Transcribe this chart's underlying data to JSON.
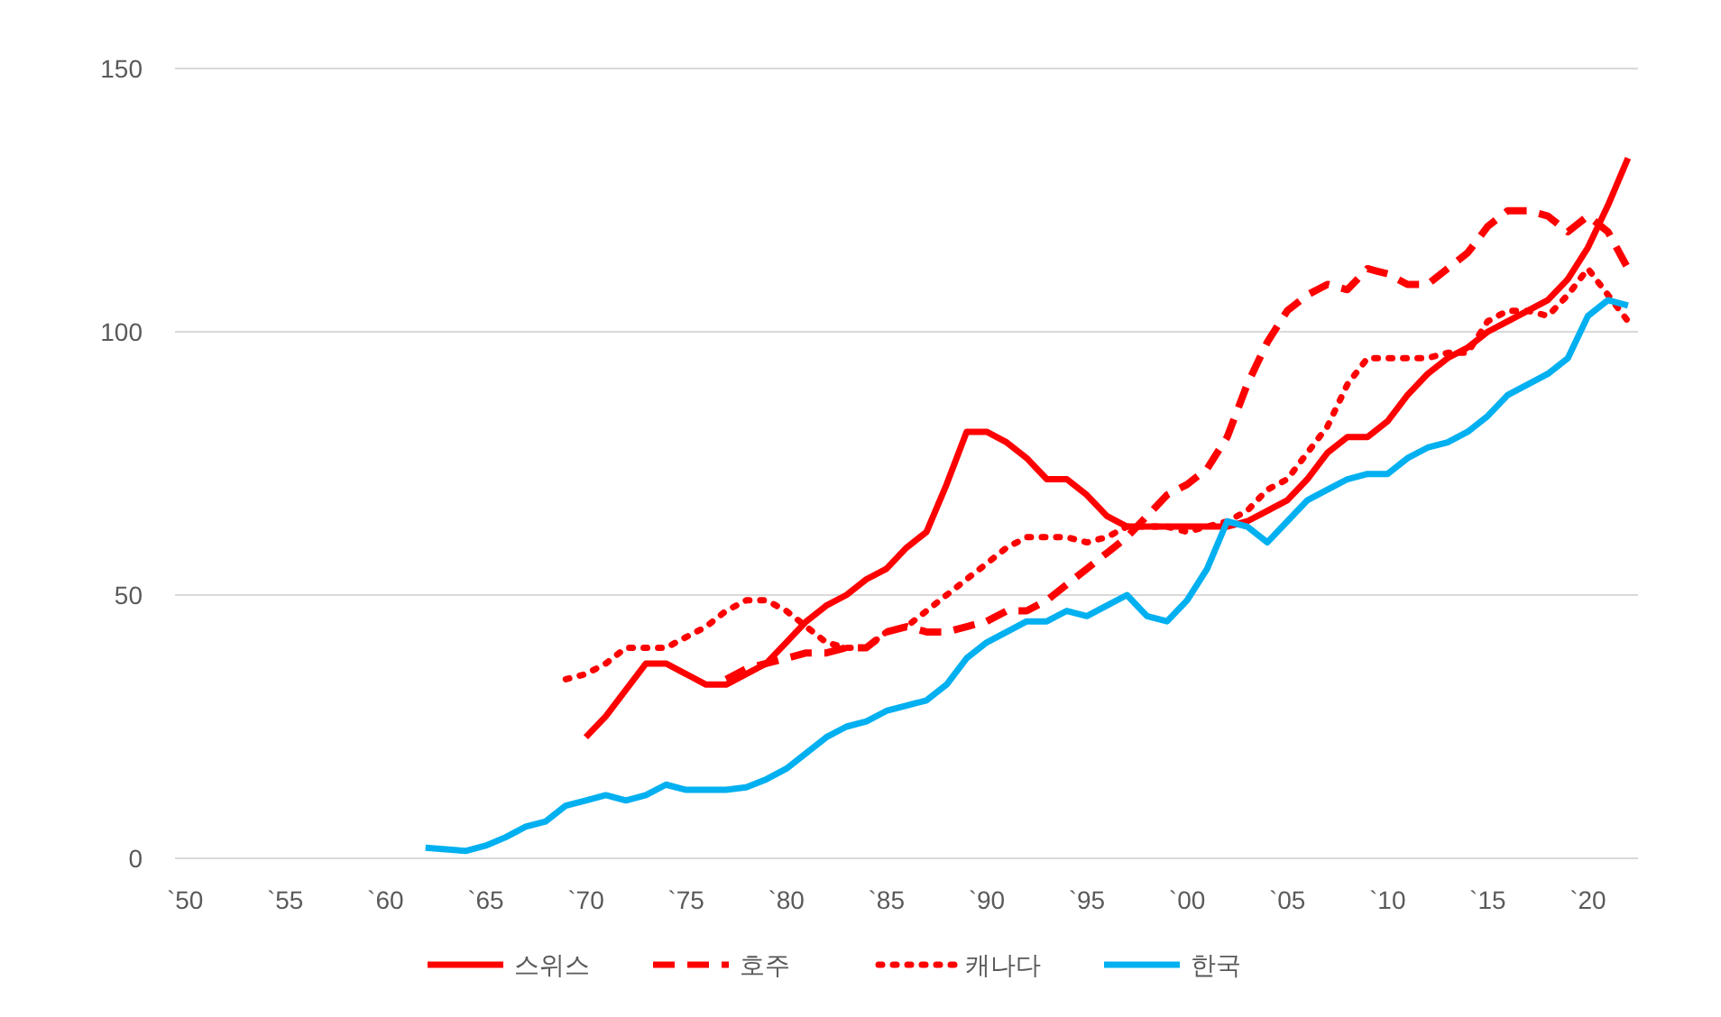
{
  "chart_data": {
    "type": "line",
    "ylim": [
      0,
      150
    ],
    "yticks": [
      0,
      50,
      100,
      150
    ],
    "categories": [
      "`50",
      null,
      null,
      null,
      null,
      "`55",
      null,
      null,
      null,
      null,
      "`60",
      null,
      null,
      null,
      null,
      "`65",
      null,
      null,
      null,
      null,
      "`70",
      null,
      null,
      null,
      null,
      "`75",
      null,
      null,
      null,
      null,
      "`80",
      null,
      null,
      null,
      null,
      "`85",
      null,
      null,
      null,
      null,
      "`90",
      null,
      null,
      null,
      null,
      "`95",
      null,
      null,
      null,
      null,
      "`00",
      null,
      null,
      null,
      null,
      "`05",
      null,
      null,
      null,
      null,
      "`10",
      null,
      null,
      null,
      null,
      "`15",
      null,
      null,
      null,
      null,
      "`20",
      null,
      null
    ],
    "grid": "y",
    "legend": "bottom",
    "series": [
      {
        "name": "스위스",
        "color": "#ff0000",
        "line_style": "solid",
        "values": [
          null,
          null,
          null,
          null,
          null,
          null,
          null,
          null,
          null,
          null,
          null,
          null,
          null,
          null,
          null,
          null,
          null,
          null,
          null,
          null,
          23,
          27,
          32,
          37,
          37,
          35,
          33,
          33,
          35,
          37,
          41,
          45,
          48,
          50,
          53,
          55,
          59,
          62,
          71,
          81,
          81,
          79,
          76,
          72,
          72,
          69,
          65,
          63,
          63,
          63,
          63,
          63,
          63,
          64,
          66,
          68,
          72,
          77,
          80,
          80,
          83,
          88,
          92,
          95,
          97,
          100,
          102,
          104,
          106,
          110,
          116,
          124,
          133
        ]
      },
      {
        "name": "호주",
        "color": "#ff0000",
        "line_style": "dashed",
        "values": [
          null,
          null,
          null,
          null,
          null,
          null,
          null,
          null,
          null,
          null,
          null,
          null,
          null,
          null,
          null,
          null,
          null,
          null,
          null,
          null,
          null,
          null,
          null,
          null,
          null,
          null,
          null,
          34,
          36,
          37,
          38,
          39,
          39,
          40,
          40,
          43,
          44,
          43,
          43,
          44,
          45,
          47,
          47,
          49,
          52,
          55,
          58,
          61,
          65,
          69,
          71,
          74,
          80,
          90,
          98,
          104,
          107,
          109,
          108,
          112,
          111,
          109,
          109,
          112,
          115,
          120,
          123,
          123,
          122,
          119,
          122,
          119,
          112
        ]
      },
      {
        "name": "캐나다",
        "color": "#ff0000",
        "line_style": "dotted",
        "values": [
          null,
          null,
          null,
          null,
          null,
          null,
          null,
          null,
          null,
          null,
          null,
          null,
          null,
          null,
          null,
          null,
          null,
          null,
          null,
          34,
          35,
          37,
          40,
          40,
          40,
          42,
          44,
          47,
          49,
          49,
          47,
          44,
          41,
          40,
          40,
          43,
          44,
          47,
          50,
          53,
          56,
          59,
          61,
          61,
          61,
          60,
          61,
          63,
          63,
          63,
          62,
          63,
          64,
          66,
          70,
          72,
          77,
          82,
          90,
          95,
          95,
          95,
          95,
          96,
          96,
          102,
          104,
          104,
          103,
          107,
          112,
          107,
          102
        ]
      },
      {
        "name": "한국",
        "color": "#00b0f0",
        "line_style": "solid",
        "values": [
          null,
          null,
          null,
          null,
          null,
          null,
          null,
          null,
          null,
          null,
          null,
          null,
          2,
          1.7,
          1.4,
          2.4,
          4,
          6,
          7,
          10,
          11,
          12,
          11,
          12,
          14,
          13,
          13,
          13,
          13.5,
          15,
          17,
          20,
          23,
          25,
          26,
          28,
          29,
          30,
          33,
          38,
          41,
          43,
          45,
          45,
          47,
          46,
          48,
          50,
          46,
          45,
          49,
          55,
          64,
          63,
          60,
          64,
          68,
          70,
          72,
          73,
          73,
          76,
          78,
          79,
          81,
          84,
          88,
          90,
          92,
          95,
          103,
          106,
          105
        ]
      }
    ]
  }
}
